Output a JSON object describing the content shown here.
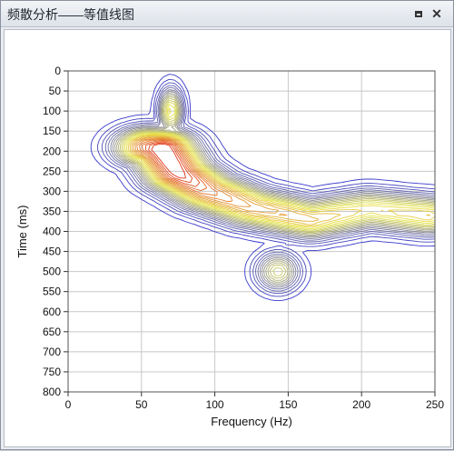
{
  "window": {
    "title": "频散分析——等值线图"
  },
  "chart_data": {
    "type": "heatmap",
    "subtype": "contour",
    "title": "",
    "xlabel": "Frequency (Hz)",
    "ylabel": "Time (ms)",
    "xlim": [
      0,
      250
    ],
    "ylim": [
      0,
      800
    ],
    "y_inverted": true,
    "grid": true,
    "x_ticks": [
      "0",
      "50",
      "100",
      "150",
      "200",
      "250"
    ],
    "y_ticks": [
      "0",
      "50",
      "100",
      "150",
      "200",
      "250",
      "300",
      "350",
      "400",
      "450",
      "500",
      "550",
      "600",
      "650",
      "700",
      "750",
      "800"
    ],
    "colors": {
      "low": "#2b2bd6",
      "mid": "#e8e84a",
      "high": "#e01010"
    },
    "ridge": [
      {
        "x": 55,
        "y": 190,
        "level": 0.85
      },
      {
        "x": 64,
        "y": 195,
        "level": 1.0
      },
      {
        "x": 75,
        "y": 255,
        "level": 0.95
      },
      {
        "x": 95,
        "y": 300,
        "level": 0.8
      },
      {
        "x": 125,
        "y": 340,
        "level": 0.7
      },
      {
        "x": 165,
        "y": 370,
        "level": 0.65
      },
      {
        "x": 205,
        "y": 345,
        "level": 0.55
      },
      {
        "x": 245,
        "y": 360,
        "level": 0.6
      }
    ],
    "features": [
      {
        "x": 70,
        "y": 100,
        "note": "upper branch"
      },
      {
        "x": 143,
        "y": 500,
        "note": "lower lobe"
      }
    ]
  }
}
